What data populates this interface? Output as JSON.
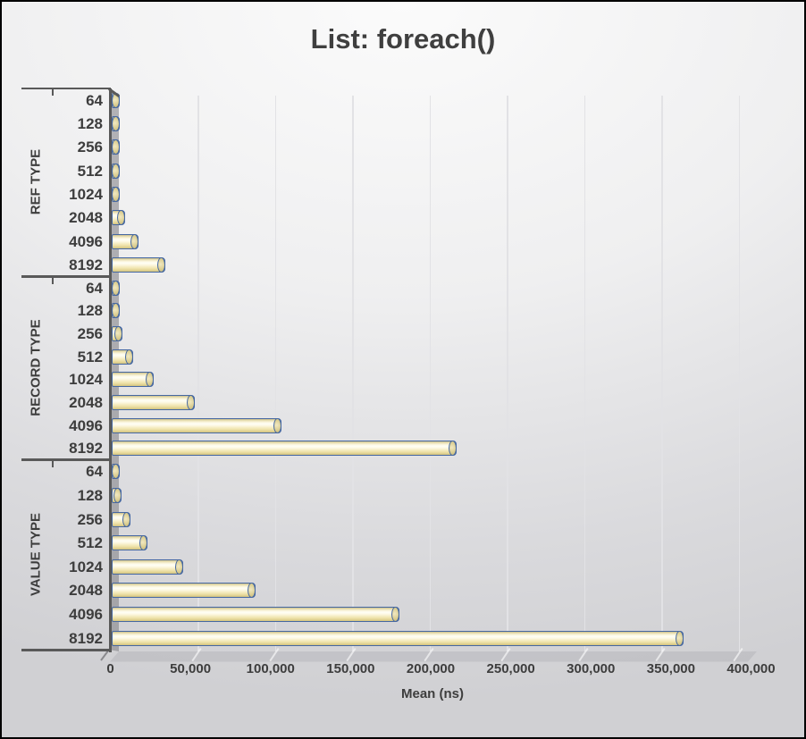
{
  "chart_data": {
    "type": "bar",
    "orientation": "horizontal",
    "style": "excel-3d-cylinder",
    "title": "List: foreach()",
    "xlabel": "Mean (ns)",
    "xlim": [
      0,
      400000
    ],
    "x_ticks": [
      0,
      50000,
      100000,
      150000,
      200000,
      250000,
      300000,
      350000,
      400000
    ],
    "x_tick_labels": [
      "0",
      "50,000",
      "100,000",
      "150,000",
      "200,000",
      "250,000",
      "300,000",
      "350,000",
      "400,000"
    ],
    "grid": true,
    "legend": false,
    "groups": [
      {
        "label": "REF TYPE",
        "categories": [
          "64",
          "128",
          "256",
          "512",
          "1024",
          "2048",
          "4096",
          "8192"
        ],
        "values": [
          270,
          530,
          1100,
          2100,
          4200,
          8400,
          16700,
          33500
        ]
      },
      {
        "label": "RECORD TYPE",
        "categories": [
          "64",
          "128",
          "256",
          "512",
          "1024",
          "2048",
          "4096",
          "8192"
        ],
        "values": [
          2000,
          3600,
          6800,
          13500,
          26500,
          52000,
          106000,
          216000
        ]
      },
      {
        "label": "VALUE TYPE",
        "categories": [
          "64",
          "128",
          "256",
          "512",
          "1024",
          "2048",
          "4096",
          "8192"
        ],
        "values": [
          3000,
          6000,
          11500,
          22500,
          45000,
          90000,
          180000,
          358000
        ]
      }
    ],
    "colors": {
      "bar_fill": "#FBF5D8",
      "bar_fill_dark": "#D8CA8C",
      "bar_border": "#4668A2",
      "line_color": "#595959",
      "label_color": "#3D3D3D",
      "grid_color": "#E2E2E5",
      "wall": "#A9A9AD",
      "background": "#E9E9EB",
      "title_color": "#3F3F3F"
    }
  }
}
